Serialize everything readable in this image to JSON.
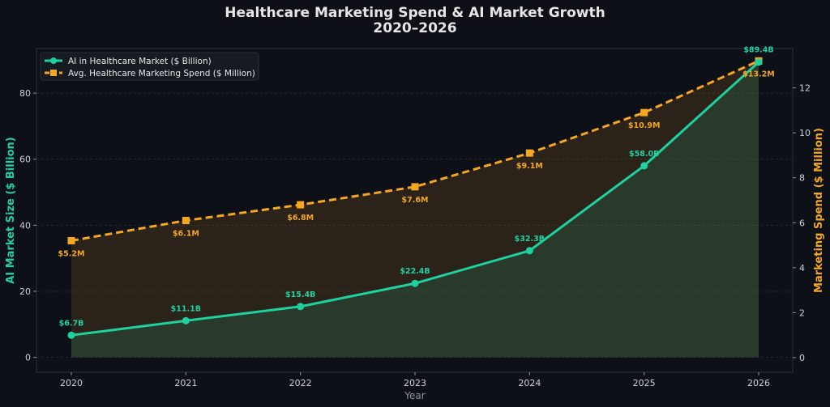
{
  "chart_data": {
    "type": "line",
    "title": "Healthcare Marketing Spend & AI Market Growth",
    "subtitle": "2020–2026",
    "xlabel": "Year",
    "ylabel_left": "AI Market Size ($ Billion)",
    "ylabel_right": "Marketing Spend ($ Million)",
    "categories": [
      "2020",
      "2021",
      "2022",
      "2023",
      "2024",
      "2025",
      "2026"
    ],
    "y_left_ticks": [
      0,
      20,
      40,
      60,
      80
    ],
    "y_right_ticks": [
      0,
      2,
      4,
      6,
      8,
      10,
      12
    ],
    "ylim_left": [
      -4.5,
      93.5
    ],
    "ylim_right": [
      -0.65,
      13.75
    ],
    "grid": true,
    "legend_position": "top-left",
    "series": [
      {
        "name": "AI in Healthcare Market ($ Billion)",
        "axis": "left",
        "color": "#1fd1a0",
        "marker": "circle",
        "line_style": "solid",
        "values": [
          6.7,
          11.1,
          15.4,
          22.4,
          32.3,
          58.0,
          89.4
        ],
        "labels": [
          "$6.7B",
          "$11.1B",
          "$15.4B",
          "$22.4B",
          "$32.3B",
          "$58.0B",
          "$89.4B"
        ]
      },
      {
        "name": "Avg. Healthcare Marketing Spend ($ Million)",
        "axis": "right",
        "color": "#f5a623",
        "marker": "square",
        "line_style": "dashed",
        "values": [
          5.2,
          6.1,
          6.8,
          7.6,
          9.1,
          10.9,
          13.2
        ],
        "labels": [
          "$5.2M",
          "$6.1M",
          "$6.8M",
          "$7.6M",
          "$9.1M",
          "$10.9M",
          "$13.2M"
        ]
      }
    ]
  }
}
